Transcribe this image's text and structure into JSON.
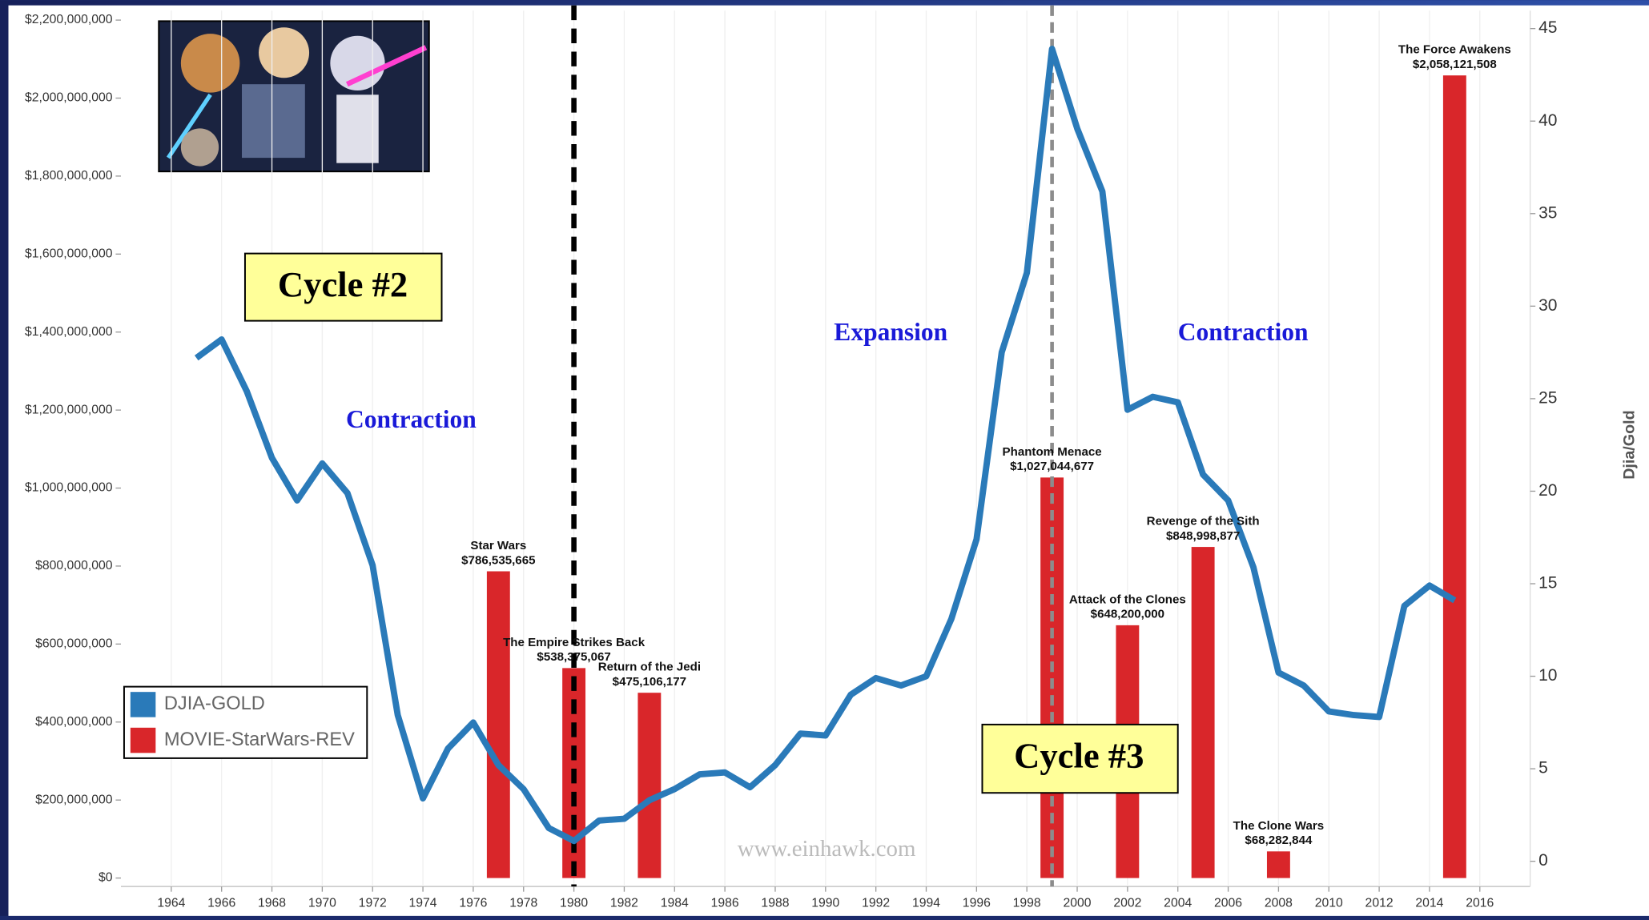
{
  "chart_data": {
    "type": "bar-line",
    "annotations": [
      "Cycle #2",
      "Contraction",
      "Expansion",
      "Contraction",
      "Cycle #3",
      "www.einhawk.com"
    ],
    "y2label": "Djia/Gold",
    "xlim": [
      1962,
      2018
    ],
    "xticks": [
      1964,
      1966,
      1968,
      1970,
      1972,
      1974,
      1976,
      1978,
      1980,
      1982,
      1984,
      1986,
      1988,
      1990,
      1992,
      1994,
      1996,
      1998,
      2000,
      2002,
      2004,
      2006,
      2008,
      2010,
      2012,
      2014,
      2016
    ],
    "ylim": [
      -21600000,
      2224300000
    ],
    "yticks": [
      {
        "value": 0,
        "label": "$0"
      },
      {
        "value": 200000000,
        "label": "$200,000,000"
      },
      {
        "value": 400000000,
        "label": "$400,000,000"
      },
      {
        "value": 600000000,
        "label": "$600,000,000"
      },
      {
        "value": 800000000,
        "label": "$800,000,000"
      },
      {
        "value": 1000000000,
        "label": "$1,000,000,000"
      },
      {
        "value": 1200000000,
        "label": "$1,200,000,000"
      },
      {
        "value": 1400000000,
        "label": "$1,400,000,000"
      },
      {
        "value": 1600000000,
        "label": "$1,600,000,000"
      },
      {
        "value": 1800000000,
        "label": "$1,800,000,000"
      },
      {
        "value": 2000000000,
        "label": "$2,000,000,000"
      },
      {
        "value": 2200000000,
        "label": "$2,200,000,000"
      }
    ],
    "y2lim": [
      -1.36,
      45.97
    ],
    "y2ticks": [
      0,
      5,
      10,
      15,
      20,
      25,
      30,
      35,
      40,
      45
    ],
    "reference_lines": [
      {
        "x": 1980,
        "color": "#000000"
      },
      {
        "x": 1999,
        "color": "#8c8c8c"
      }
    ],
    "legend": "lower left",
    "series": [
      {
        "name": "DJIA-GOLD",
        "color": "#2a7ab9",
        "type": "line",
        "axis": "y2",
        "x": [
          1965,
          1966,
          1967,
          1968,
          1969,
          1970,
          1971,
          1972,
          1973,
          1974,
          1975,
          1976,
          1977,
          1978,
          1979,
          1980,
          1981,
          1982,
          1983,
          1984,
          1985,
          1986,
          1987,
          1988,
          1989,
          1990,
          1991,
          1992,
          1993,
          1994,
          1995,
          1996,
          1997,
          1998,
          1999,
          2000,
          2001,
          2002,
          2003,
          2004,
          2005,
          2006,
          2007,
          2008,
          2009,
          2010,
          2011,
          2012,
          2013,
          2014,
          2015
        ],
        "values": [
          27.2,
          28.2,
          25.4,
          21.8,
          19.5,
          21.5,
          19.9,
          16.0,
          7.9,
          3.4,
          6.1,
          7.5,
          5.2,
          3.9,
          1.8,
          1.1,
          2.2,
          2.3,
          3.3,
          3.9,
          4.7,
          4.8,
          4.0,
          5.2,
          6.9,
          6.8,
          9.0,
          9.9,
          9.5,
          10.0,
          13.1,
          17.4,
          27.5,
          31.8,
          43.9,
          39.6,
          36.2,
          24.4,
          25.1,
          24.8,
          20.9,
          19.5,
          15.9,
          10.2,
          9.5,
          8.1,
          7.9,
          7.8,
          13.8,
          14.9,
          14.1
        ]
      },
      {
        "name": "MOVIE-StarWars-REV",
        "color": "#d9262a",
        "type": "bar",
        "x": [
          1977,
          1980,
          1983,
          1999,
          2002,
          2005,
          2008,
          2015
        ],
        "labels": [
          "Star Wars",
          "The Empire Strikes Back",
          "Return of the Jedi",
          "Phantom Menace",
          "Attack of the Clones",
          "Revenge of the Sith",
          "The Clone Wars",
          "The Force Awakens"
        ],
        "values": [
          786535665,
          538375067,
          475106177,
          1027044677,
          648200000,
          848998877,
          68282844,
          2058121508
        ],
        "value_labels": [
          "$786,535,665",
          "$538,375,067",
          "$475,106,177",
          "$1,027,044,677",
          "$648,200,000",
          "$848,998,877",
          "$68,282,844",
          "$2,058,121,508"
        ]
      }
    ]
  }
}
